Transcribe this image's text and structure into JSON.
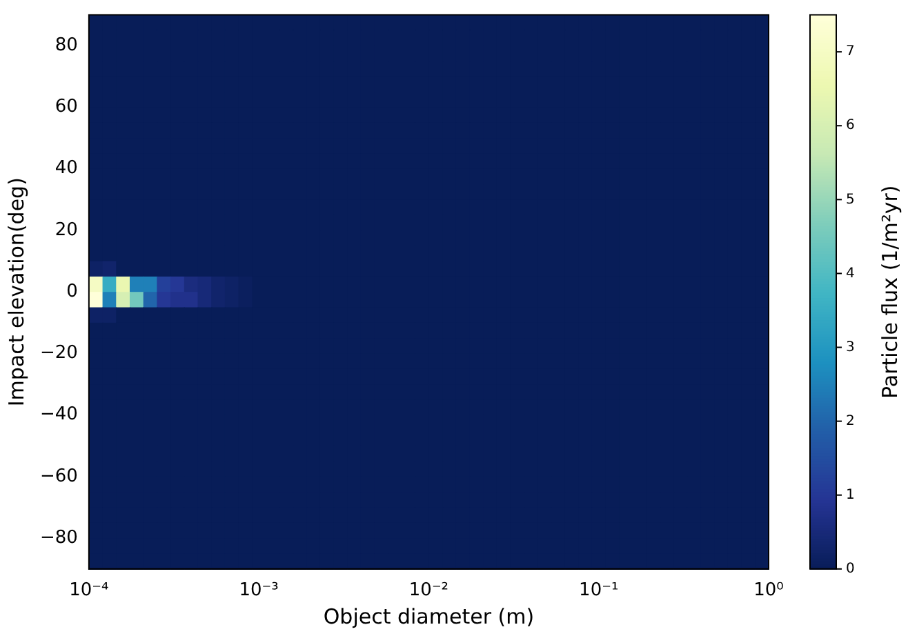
{
  "chart_data": {
    "type": "heatmap",
    "xlabel": "Object diameter (m)",
    "ylabel": "Impact elevation(deg)",
    "clabel": "Particle flux (1/m²yr)",
    "log": "x",
    "xlim": [
      0.0001,
      1
    ],
    "xticks": [
      {
        "value": 0.0001,
        "label": "10⁻⁴"
      },
      {
        "value": 0.001,
        "label": "10⁻³"
      },
      {
        "value": 0.01,
        "label": "10⁻²"
      },
      {
        "value": 0.1,
        "label": "10⁻¹"
      },
      {
        "value": 1,
        "label": "10⁰"
      }
    ],
    "ylim": [
      -90,
      90
    ],
    "yticks": [
      {
        "value": -80,
        "label": "−80"
      },
      {
        "value": -60,
        "label": "−60"
      },
      {
        "value": -40,
        "label": "−40"
      },
      {
        "value": -20,
        "label": "−20"
      },
      0,
      20,
      40,
      60,
      80
    ],
    "clim": [
      0,
      7.5
    ],
    "cticks": [
      0,
      1,
      2,
      3,
      4,
      5,
      6,
      7
    ],
    "cells": [
      [
        0,
        0,
        0,
        0,
        0,
        0,
        0,
        0,
        0,
        0,
        0,
        0,
        0,
        0,
        0,
        0,
        0,
        0,
        0,
        0,
        0,
        0,
        0,
        0,
        0,
        0,
        0,
        0,
        0,
        0,
        0,
        0,
        0,
        0,
        0,
        0,
        0,
        0,
        0,
        0,
        0,
        0,
        0,
        0,
        0,
        0,
        0,
        0,
        0,
        0
      ],
      [
        0,
        0,
        0,
        0,
        0,
        0,
        0,
        0,
        0,
        0,
        0,
        0,
        0,
        0,
        0,
        0,
        0,
        0,
        0,
        0,
        0,
        0,
        0,
        0,
        0,
        0,
        0,
        0,
        0,
        0,
        0,
        0,
        0,
        0,
        0,
        0,
        0,
        0,
        0,
        0,
        0,
        0,
        0,
        0,
        0,
        0,
        0,
        0,
        0,
        0
      ],
      [
        0,
        0,
        0,
        0,
        0,
        0,
        0,
        0,
        0,
        0,
        0,
        0,
        0,
        0,
        0,
        0,
        0,
        0,
        0,
        0,
        0,
        0,
        0,
        0,
        0,
        0,
        0,
        0,
        0,
        0,
        0,
        0,
        0,
        0,
        0,
        0,
        0,
        0,
        0,
        0,
        0,
        0,
        0,
        0,
        0,
        0,
        0,
        0,
        0,
        0
      ],
      [
        0,
        0,
        0,
        0,
        0,
        0,
        0,
        0,
        0,
        0,
        0,
        0,
        0,
        0,
        0,
        0,
        0,
        0,
        0,
        0,
        0,
        0,
        0,
        0,
        0,
        0,
        0,
        0,
        0,
        0,
        0,
        0,
        0,
        0,
        0,
        0,
        0,
        0,
        0,
        0,
        0,
        0,
        0,
        0,
        0,
        0,
        0,
        0,
        0,
        0
      ],
      [
        0,
        0,
        0,
        0,
        0,
        0,
        0,
        0,
        0,
        0,
        0,
        0,
        0,
        0,
        0,
        0,
        0,
        0,
        0,
        0,
        0,
        0,
        0,
        0,
        0,
        0,
        0,
        0,
        0,
        0,
        0,
        0,
        0,
        0,
        0,
        0,
        0,
        0,
        0,
        0,
        0,
        0,
        0,
        0,
        0,
        0,
        0,
        0,
        0,
        0
      ],
      [
        0,
        0,
        0,
        0,
        0,
        0,
        0,
        0,
        0,
        0,
        0,
        0,
        0,
        0,
        0,
        0,
        0,
        0,
        0,
        0,
        0,
        0,
        0,
        0,
        0,
        0,
        0,
        0,
        0,
        0,
        0,
        0,
        0,
        0,
        0,
        0,
        0,
        0,
        0,
        0,
        0,
        0,
        0,
        0,
        0,
        0,
        0,
        0,
        0,
        0
      ],
      [
        0,
        0,
        0,
        0,
        0,
        0,
        0,
        0,
        0,
        0,
        0,
        0,
        0,
        0,
        0,
        0,
        0,
        0,
        0,
        0,
        0,
        0,
        0,
        0,
        0,
        0,
        0,
        0,
        0,
        0,
        0,
        0,
        0,
        0,
        0,
        0,
        0,
        0,
        0,
        0,
        0,
        0,
        0,
        0,
        0,
        0,
        0,
        0,
        0,
        0
      ],
      [
        0,
        0,
        0,
        0,
        0,
        0,
        0,
        0,
        0,
        0,
        0,
        0,
        0,
        0,
        0,
        0,
        0,
        0,
        0,
        0,
        0,
        0,
        0,
        0,
        0,
        0,
        0,
        0,
        0,
        0,
        0,
        0,
        0,
        0,
        0,
        0,
        0,
        0,
        0,
        0,
        0,
        0,
        0,
        0,
        0,
        0,
        0,
        0,
        0,
        0
      ],
      [
        0,
        0,
        0,
        0,
        0,
        0,
        0,
        0,
        0,
        0,
        0,
        0,
        0,
        0,
        0,
        0,
        0,
        0,
        0,
        0,
        0,
        0,
        0,
        0,
        0,
        0,
        0,
        0,
        0,
        0,
        0,
        0,
        0,
        0,
        0,
        0,
        0,
        0,
        0,
        0,
        0,
        0,
        0,
        0,
        0,
        0,
        0,
        0,
        0,
        0
      ],
      [
        0,
        0,
        0,
        0,
        0,
        0,
        0,
        0,
        0,
        0,
        0,
        0,
        0,
        0,
        0,
        0,
        0,
        0,
        0,
        0,
        0,
        0,
        0,
        0,
        0,
        0,
        0,
        0,
        0,
        0,
        0,
        0,
        0,
        0,
        0,
        0,
        0,
        0,
        0,
        0,
        0,
        0,
        0,
        0,
        0,
        0,
        0,
        0,
        0,
        0
      ],
      [
        0,
        0,
        0,
        0,
        0,
        0,
        0,
        0,
        0,
        0,
        0,
        0,
        0,
        0,
        0,
        0,
        0,
        0,
        0,
        0,
        0,
        0,
        0,
        0,
        0,
        0,
        0,
        0,
        0,
        0,
        0,
        0,
        0,
        0,
        0,
        0,
        0,
        0,
        0,
        0,
        0,
        0,
        0,
        0,
        0,
        0,
        0,
        0,
        0,
        0
      ],
      [
        0,
        0,
        0,
        0,
        0,
        0,
        0,
        0,
        0,
        0,
        0,
        0,
        0,
        0,
        0,
        0,
        0,
        0,
        0,
        0,
        0,
        0,
        0,
        0,
        0,
        0,
        0,
        0,
        0,
        0,
        0,
        0,
        0,
        0,
        0,
        0,
        0,
        0,
        0,
        0,
        0,
        0,
        0,
        0,
        0,
        0,
        0,
        0,
        0,
        0
      ],
      [
        0,
        0,
        0,
        0,
        0,
        0,
        0,
        0,
        0,
        0,
        0,
        0,
        0,
        0,
        0,
        0,
        0,
        0,
        0,
        0,
        0,
        0,
        0,
        0,
        0,
        0,
        0,
        0,
        0,
        0,
        0,
        0,
        0,
        0,
        0,
        0,
        0,
        0,
        0,
        0,
        0,
        0,
        0,
        0,
        0,
        0,
        0,
        0,
        0,
        0
      ],
      [
        0,
        0,
        0,
        0,
        0,
        0,
        0,
        0,
        0,
        0,
        0,
        0,
        0,
        0,
        0,
        0,
        0,
        0,
        0,
        0,
        0,
        0,
        0,
        0,
        0,
        0,
        0,
        0,
        0,
        0,
        0,
        0,
        0,
        0,
        0,
        0,
        0,
        0,
        0,
        0,
        0,
        0,
        0,
        0,
        0,
        0,
        0,
        0,
        0,
        0
      ],
      [
        0,
        0,
        0,
        0,
        0,
        0,
        0,
        0,
        0,
        0,
        0,
        0,
        0,
        0,
        0,
        0,
        0,
        0,
        0,
        0,
        0,
        0,
        0,
        0,
        0,
        0,
        0,
        0,
        0,
        0,
        0,
        0,
        0,
        0,
        0,
        0,
        0,
        0,
        0,
        0,
        0,
        0,
        0,
        0,
        0,
        0,
        0,
        0,
        0,
        0
      ],
      [
        0,
        0,
        0,
        0,
        0,
        0,
        0,
        0,
        0,
        0,
        0,
        0,
        0,
        0,
        0,
        0,
        0,
        0,
        0,
        0,
        0,
        0,
        0,
        0,
        0,
        0,
        0,
        0,
        0,
        0,
        0,
        0,
        0,
        0,
        0,
        0,
        0,
        0,
        0,
        0,
        0,
        0,
        0,
        0,
        0,
        0,
        0,
        0,
        0,
        0
      ],
      [
        0.2,
        0.3,
        0,
        0,
        0,
        0,
        0,
        0,
        0,
        0,
        0,
        0,
        0,
        0,
        0,
        0,
        0,
        0,
        0,
        0,
        0,
        0,
        0,
        0,
        0,
        0,
        0,
        0,
        0,
        0,
        0,
        0,
        0,
        0,
        0,
        0,
        0,
        0,
        0,
        0,
        0,
        0,
        0,
        0,
        0,
        0,
        0,
        0,
        0,
        0
      ],
      [
        7,
        3.5,
        6.5,
        2.5,
        2.5,
        1.2,
        1,
        0.6,
        0.5,
        0.3,
        0.2,
        0.1,
        0,
        0,
        0,
        0,
        0,
        0,
        0,
        0,
        0,
        0,
        0,
        0,
        0,
        0,
        0,
        0,
        0,
        0,
        0,
        0,
        0,
        0,
        0,
        0,
        0,
        0,
        0,
        0,
        0,
        0,
        0,
        0,
        0,
        0,
        0,
        0,
        0,
        0
      ],
      [
        7.5,
        2.5,
        6,
        4.5,
        2,
        1,
        0.8,
        0.8,
        0.5,
        0.3,
        0.2,
        0.1,
        0,
        0,
        0,
        0,
        0,
        0,
        0,
        0,
        0,
        0,
        0,
        0,
        0,
        0,
        0,
        0,
        0,
        0,
        0,
        0,
        0,
        0,
        0,
        0,
        0,
        0,
        0,
        0,
        0,
        0,
        0,
        0,
        0,
        0,
        0,
        0,
        0,
        0
      ],
      [
        0.2,
        0.2,
        0,
        0,
        0,
        0,
        0,
        0,
        0,
        0,
        0,
        0,
        0,
        0,
        0,
        0,
        0,
        0,
        0,
        0,
        0,
        0,
        0,
        0,
        0,
        0,
        0,
        0,
        0,
        0,
        0,
        0,
        0,
        0,
        0,
        0,
        0,
        0,
        0,
        0,
        0,
        0,
        0,
        0,
        0,
        0,
        0,
        0,
        0,
        0
      ],
      [
        0,
        0,
        0,
        0,
        0,
        0,
        0,
        0,
        0,
        0,
        0,
        0,
        0,
        0,
        0,
        0,
        0,
        0,
        0,
        0,
        0,
        0,
        0,
        0,
        0,
        0,
        0,
        0,
        0,
        0,
        0,
        0,
        0,
        0,
        0,
        0,
        0,
        0,
        0,
        0,
        0,
        0,
        0,
        0,
        0,
        0,
        0,
        0,
        0,
        0
      ],
      [
        0,
        0,
        0,
        0,
        0,
        0,
        0,
        0,
        0,
        0,
        0,
        0,
        0,
        0,
        0,
        0,
        0,
        0,
        0,
        0,
        0,
        0,
        0,
        0,
        0,
        0,
        0,
        0,
        0,
        0,
        0,
        0,
        0,
        0,
        0,
        0,
        0,
        0,
        0,
        0,
        0,
        0,
        0,
        0,
        0,
        0,
        0,
        0,
        0,
        0
      ],
      [
        0,
        0,
        0,
        0,
        0,
        0,
        0,
        0,
        0,
        0,
        0,
        0,
        0,
        0,
        0,
        0,
        0,
        0,
        0,
        0,
        0,
        0,
        0,
        0,
        0,
        0,
        0,
        0,
        0,
        0,
        0,
        0,
        0,
        0,
        0,
        0,
        0,
        0,
        0,
        0,
        0,
        0,
        0,
        0,
        0,
        0,
        0,
        0,
        0,
        0
      ],
      [
        0,
        0,
        0,
        0,
        0,
        0,
        0,
        0,
        0,
        0,
        0,
        0,
        0,
        0,
        0,
        0,
        0,
        0,
        0,
        0,
        0,
        0,
        0,
        0,
        0,
        0,
        0,
        0,
        0,
        0,
        0,
        0,
        0,
        0,
        0,
        0,
        0,
        0,
        0,
        0,
        0,
        0,
        0,
        0,
        0,
        0,
        0,
        0,
        0,
        0
      ],
      [
        0,
        0,
        0,
        0,
        0,
        0,
        0,
        0,
        0,
        0,
        0,
        0,
        0,
        0,
        0,
        0,
        0,
        0,
        0,
        0,
        0,
        0,
        0,
        0,
        0,
        0,
        0,
        0,
        0,
        0,
        0,
        0,
        0,
        0,
        0,
        0,
        0,
        0,
        0,
        0,
        0,
        0,
        0,
        0,
        0,
        0,
        0,
        0,
        0,
        0
      ],
      [
        0,
        0,
        0,
        0,
        0,
        0,
        0,
        0,
        0,
        0,
        0,
        0,
        0,
        0,
        0,
        0,
        0,
        0,
        0,
        0,
        0,
        0,
        0,
        0,
        0,
        0,
        0,
        0,
        0,
        0,
        0,
        0,
        0,
        0,
        0,
        0,
        0,
        0,
        0,
        0,
        0,
        0,
        0,
        0,
        0,
        0,
        0,
        0,
        0,
        0
      ],
      [
        0,
        0,
        0,
        0,
        0,
        0,
        0,
        0,
        0,
        0,
        0,
        0,
        0,
        0,
        0,
        0,
        0,
        0,
        0,
        0,
        0,
        0,
        0,
        0,
        0,
        0,
        0,
        0,
        0,
        0,
        0,
        0,
        0,
        0,
        0,
        0,
        0,
        0,
        0,
        0,
        0,
        0,
        0,
        0,
        0,
        0,
        0,
        0,
        0,
        0
      ],
      [
        0,
        0,
        0,
        0,
        0,
        0,
        0,
        0,
        0,
        0,
        0,
        0,
        0,
        0,
        0,
        0,
        0,
        0,
        0,
        0,
        0,
        0,
        0,
        0,
        0,
        0,
        0,
        0,
        0,
        0,
        0,
        0,
        0,
        0,
        0,
        0,
        0,
        0,
        0,
        0,
        0,
        0,
        0,
        0,
        0,
        0,
        0,
        0,
        0,
        0
      ],
      [
        0,
        0,
        0,
        0,
        0,
        0,
        0,
        0,
        0,
        0,
        0,
        0,
        0,
        0,
        0,
        0,
        0,
        0,
        0,
        0,
        0,
        0,
        0,
        0,
        0,
        0,
        0,
        0,
        0,
        0,
        0,
        0,
        0,
        0,
        0,
        0,
        0,
        0,
        0,
        0,
        0,
        0,
        0,
        0,
        0,
        0,
        0,
        0,
        0,
        0
      ],
      [
        0,
        0,
        0,
        0,
        0,
        0,
        0,
        0,
        0,
        0,
        0,
        0,
        0,
        0,
        0,
        0,
        0,
        0,
        0,
        0,
        0,
        0,
        0,
        0,
        0,
        0,
        0,
        0,
        0,
        0,
        0,
        0,
        0,
        0,
        0,
        0,
        0,
        0,
        0,
        0,
        0,
        0,
        0,
        0,
        0,
        0,
        0,
        0,
        0,
        0
      ],
      [
        0,
        0,
        0,
        0,
        0,
        0,
        0,
        0,
        0,
        0,
        0,
        0,
        0,
        0,
        0,
        0,
        0,
        0,
        0,
        0,
        0,
        0,
        0,
        0,
        0,
        0,
        0,
        0,
        0,
        0,
        0,
        0,
        0,
        0,
        0,
        0,
        0,
        0,
        0,
        0,
        0,
        0,
        0,
        0,
        0,
        0,
        0,
        0,
        0,
        0
      ],
      [
        0,
        0,
        0,
        0,
        0,
        0,
        0,
        0,
        0,
        0,
        0,
        0,
        0,
        0,
        0,
        0,
        0,
        0,
        0,
        0,
        0,
        0,
        0,
        0,
        0,
        0,
        0,
        0,
        0,
        0,
        0,
        0,
        0,
        0,
        0,
        0,
        0,
        0,
        0,
        0,
        0,
        0,
        0,
        0,
        0,
        0,
        0,
        0,
        0,
        0
      ],
      [
        0,
        0,
        0,
        0,
        0,
        0,
        0,
        0,
        0,
        0,
        0,
        0,
        0,
        0,
        0,
        0,
        0,
        0,
        0,
        0,
        0,
        0,
        0,
        0,
        0,
        0,
        0,
        0,
        0,
        0,
        0,
        0,
        0,
        0,
        0,
        0,
        0,
        0,
        0,
        0,
        0,
        0,
        0,
        0,
        0,
        0,
        0,
        0,
        0,
        0
      ],
      [
        0,
        0,
        0,
        0,
        0,
        0,
        0,
        0,
        0,
        0,
        0,
        0,
        0,
        0,
        0,
        0,
        0,
        0,
        0,
        0,
        0,
        0,
        0,
        0,
        0,
        0,
        0,
        0,
        0,
        0,
        0,
        0,
        0,
        0,
        0,
        0,
        0,
        0,
        0,
        0,
        0,
        0,
        0,
        0,
        0,
        0,
        0,
        0,
        0,
        0
      ],
      [
        0,
        0,
        0,
        0,
        0,
        0,
        0,
        0,
        0,
        0,
        0,
        0,
        0,
        0,
        0,
        0,
        0,
        0,
        0,
        0,
        0,
        0,
        0,
        0,
        0,
        0,
        0,
        0,
        0,
        0,
        0,
        0,
        0,
        0,
        0,
        0,
        0,
        0,
        0,
        0,
        0,
        0,
        0,
        0,
        0,
        0,
        0,
        0,
        0,
        0
      ],
      [
        0,
        0,
        0,
        0,
        0,
        0,
        0,
        0,
        0,
        0,
        0,
        0,
        0,
        0,
        0,
        0,
        0,
        0,
        0,
        0,
        0,
        0,
        0,
        0,
        0,
        0,
        0,
        0,
        0,
        0,
        0,
        0,
        0,
        0,
        0,
        0,
        0,
        0,
        0,
        0,
        0,
        0,
        0,
        0,
        0,
        0,
        0,
        0,
        0,
        0
      ]
    ]
  }
}
